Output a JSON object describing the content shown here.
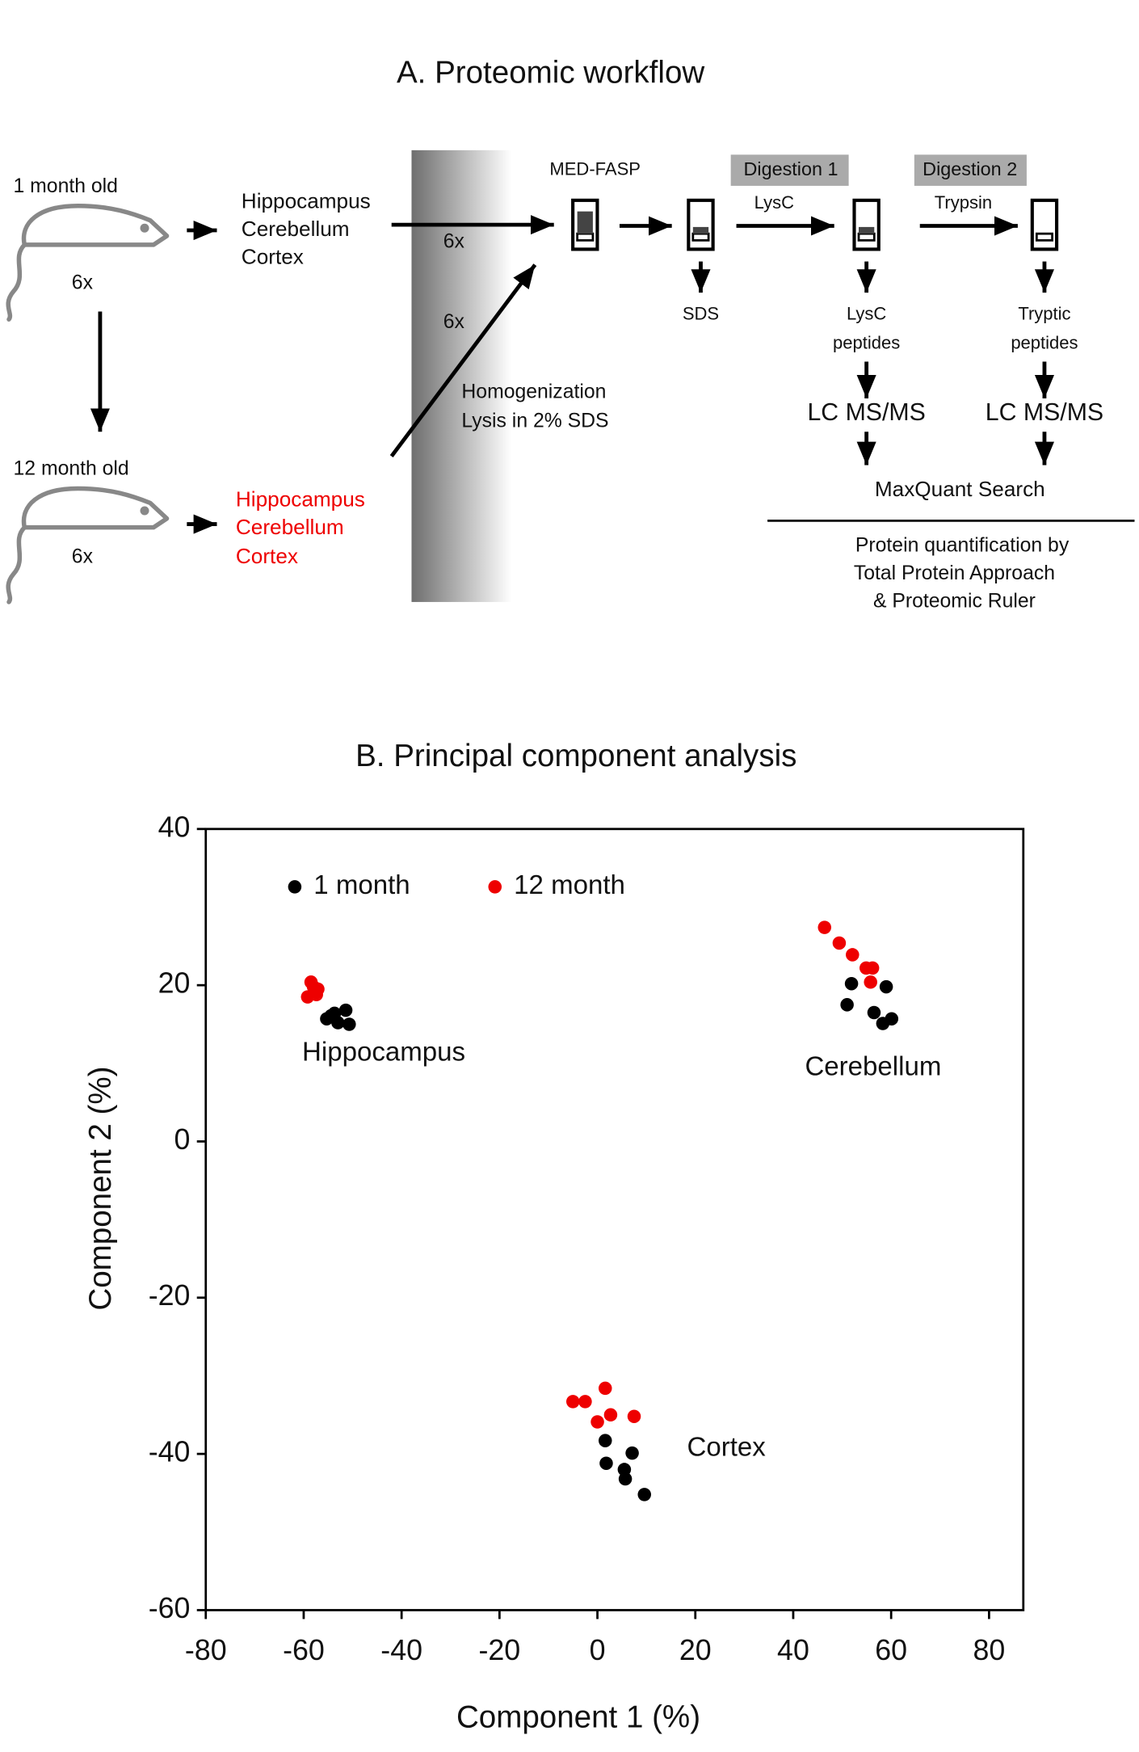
{
  "workflow": {
    "title": "A. Proteomic workflow",
    "young": {
      "age": "1 month old",
      "n": "6x",
      "tissues": [
        "Hippocampus",
        "Cerebellum",
        "Cortex"
      ]
    },
    "old": {
      "age": "12 month old",
      "n": "6x",
      "tissues": [
        "Hippocampus",
        "Cerebellum",
        "Cortex"
      ]
    },
    "arrow_young": "6x",
    "arrow_old": "6x",
    "process": [
      "Homogenization",
      "Lysis in 2% SDS"
    ],
    "steps": {
      "medfasp": "MED-FASP",
      "sds": "SDS",
      "digestion1": "Digestion 1",
      "lysc": "LysC",
      "digestion2": "Digestion 2",
      "trypsin": "Trypsin",
      "lysc_peptides": [
        "LysC",
        "peptides"
      ],
      "tryptic_peptides": [
        "Tryptic",
        "peptides"
      ],
      "lcms1": "LC MS/MS",
      "lcms2": "LC MS/MS",
      "maxquant": "MaxQuant Search",
      "quantification": [
        "Protein quantification by",
        "Total Protein Approach",
        "&  Proteomic Ruler"
      ]
    }
  },
  "chart_data": {
    "type": "scatter",
    "title": "B. Principal component analysis",
    "x_label": "Component 1 (%)",
    "y_label": "Component 2 (%)",
    "xlim": [
      -80,
      87
    ],
    "ylim": [
      -60,
      40
    ],
    "xticks": [
      -80,
      -60,
      -40,
      -20,
      0,
      20,
      40,
      60,
      80
    ],
    "yticks": [
      -60,
      -40,
      -20,
      0,
      20,
      40
    ],
    "legend": "top-left",
    "series": [
      {
        "name": "1 month",
        "color": "#000000",
        "x": [
          -55.3,
          -53.7,
          -51.4,
          -50.7,
          -53,
          -54.4,
          51.9,
          59,
          51,
          56.5,
          58.3,
          60.1,
          1.6,
          1.8,
          7.1,
          5.5,
          5.7,
          9.6
        ],
        "y": [
          15.7,
          16.4,
          16.8,
          15,
          15.2,
          16.1,
          20.2,
          19.8,
          17.5,
          16.5,
          15.1,
          15.7,
          -38.3,
          -41.2,
          -39.9,
          -42,
          -43.2,
          -45.2
        ]
      },
      {
        "name": "12 month",
        "color": "#ee0000",
        "x": [
          -58.5,
          -57.1,
          -59.2,
          -57.4,
          -58,
          46.4,
          49.4,
          52.1,
          54.9,
          56.2,
          55.8,
          -5,
          -2.5,
          1.6,
          2.7,
          0,
          7.5
        ],
        "y": [
          20.4,
          19.5,
          18.5,
          18.8,
          19.8,
          27.4,
          25.4,
          23.9,
          22.2,
          22.2,
          20.4,
          -33.3,
          -33.3,
          -31.6,
          -35,
          -35.9,
          -35.2
        ]
      }
    ],
    "annotations": [
      "Hippocampus",
      "Cerebellum",
      "Cortex"
    ]
  }
}
